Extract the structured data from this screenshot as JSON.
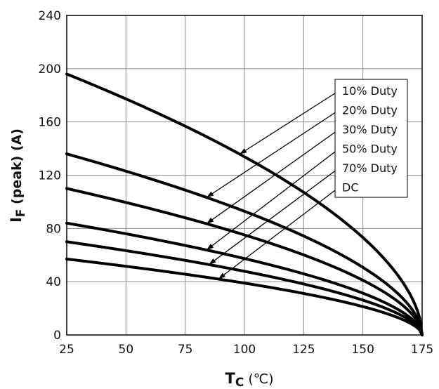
{
  "chart_data": {
    "type": "line",
    "xlabel_main": "T",
    "xlabel_sub": "C",
    "xlabel_unit": " (℃)",
    "ylabel_main": "I",
    "ylabel_sub": "F",
    "ylabel_rest": " (peak) (A)",
    "xlim": [
      25,
      175
    ],
    "ylim": [
      0,
      240
    ],
    "xticks": [
      25,
      50,
      75,
      100,
      125,
      150,
      175
    ],
    "yticks": [
      0,
      40,
      80,
      120,
      160,
      200,
      240
    ],
    "grid": true,
    "legend_position": "upper-right",
    "series": [
      {
        "name": "10% Duty",
        "base": 196
      },
      {
        "name": "20% Duty",
        "base": 136
      },
      {
        "name": "30% Duty",
        "base": 110
      },
      {
        "name": "50% Duty",
        "base": 84
      },
      {
        "name": "70% Duty",
        "base": 70
      },
      {
        "name": "DC",
        "base": 57
      }
    ],
    "curve_endpoint": [
      175,
      0
    ],
    "curve_note": "each series decreases from its base value at 25 to 0 at 175 following y = base * ((175 - x)/150)^0.55"
  },
  "colors": {
    "line": "#000000",
    "grid": "#8a8a8a",
    "text": "#111111"
  }
}
